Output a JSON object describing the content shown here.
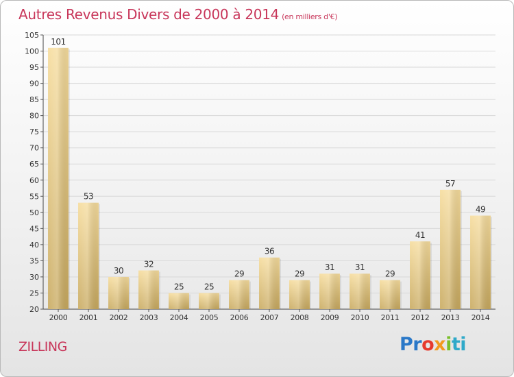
{
  "header": {
    "title": "Autres Revenus Divers de 2000 à 2014",
    "unit": "(en milliers d'€)"
  },
  "footer": {
    "town": "ZILLING",
    "logo": [
      "Pr",
      "o",
      "x",
      "i",
      "ti"
    ]
  },
  "colors": {
    "bar_top": "#f6dc9c",
    "bar_bottom": "#c8a95e",
    "accent": "#c8365a",
    "grid": "#d8d8d8"
  },
  "chart_data": {
    "type": "bar",
    "title": "Autres Revenus Divers de 2000 à 2014",
    "categories": [
      "2000",
      "2001",
      "2002",
      "2003",
      "2004",
      "2005",
      "2006",
      "2007",
      "2008",
      "2009",
      "2010",
      "2011",
      "2012",
      "2013",
      "2014"
    ],
    "values": [
      101,
      53,
      30,
      32,
      25,
      25,
      29,
      36,
      29,
      31,
      31,
      29,
      41,
      57,
      49
    ],
    "ylim": [
      20,
      105
    ],
    "yticks": [
      20,
      25,
      30,
      35,
      40,
      45,
      50,
      55,
      60,
      65,
      70,
      75,
      80,
      85,
      90,
      95,
      100,
      105
    ],
    "xlabel": "",
    "ylabel": "",
    "grid": true,
    "data_labels": true
  }
}
